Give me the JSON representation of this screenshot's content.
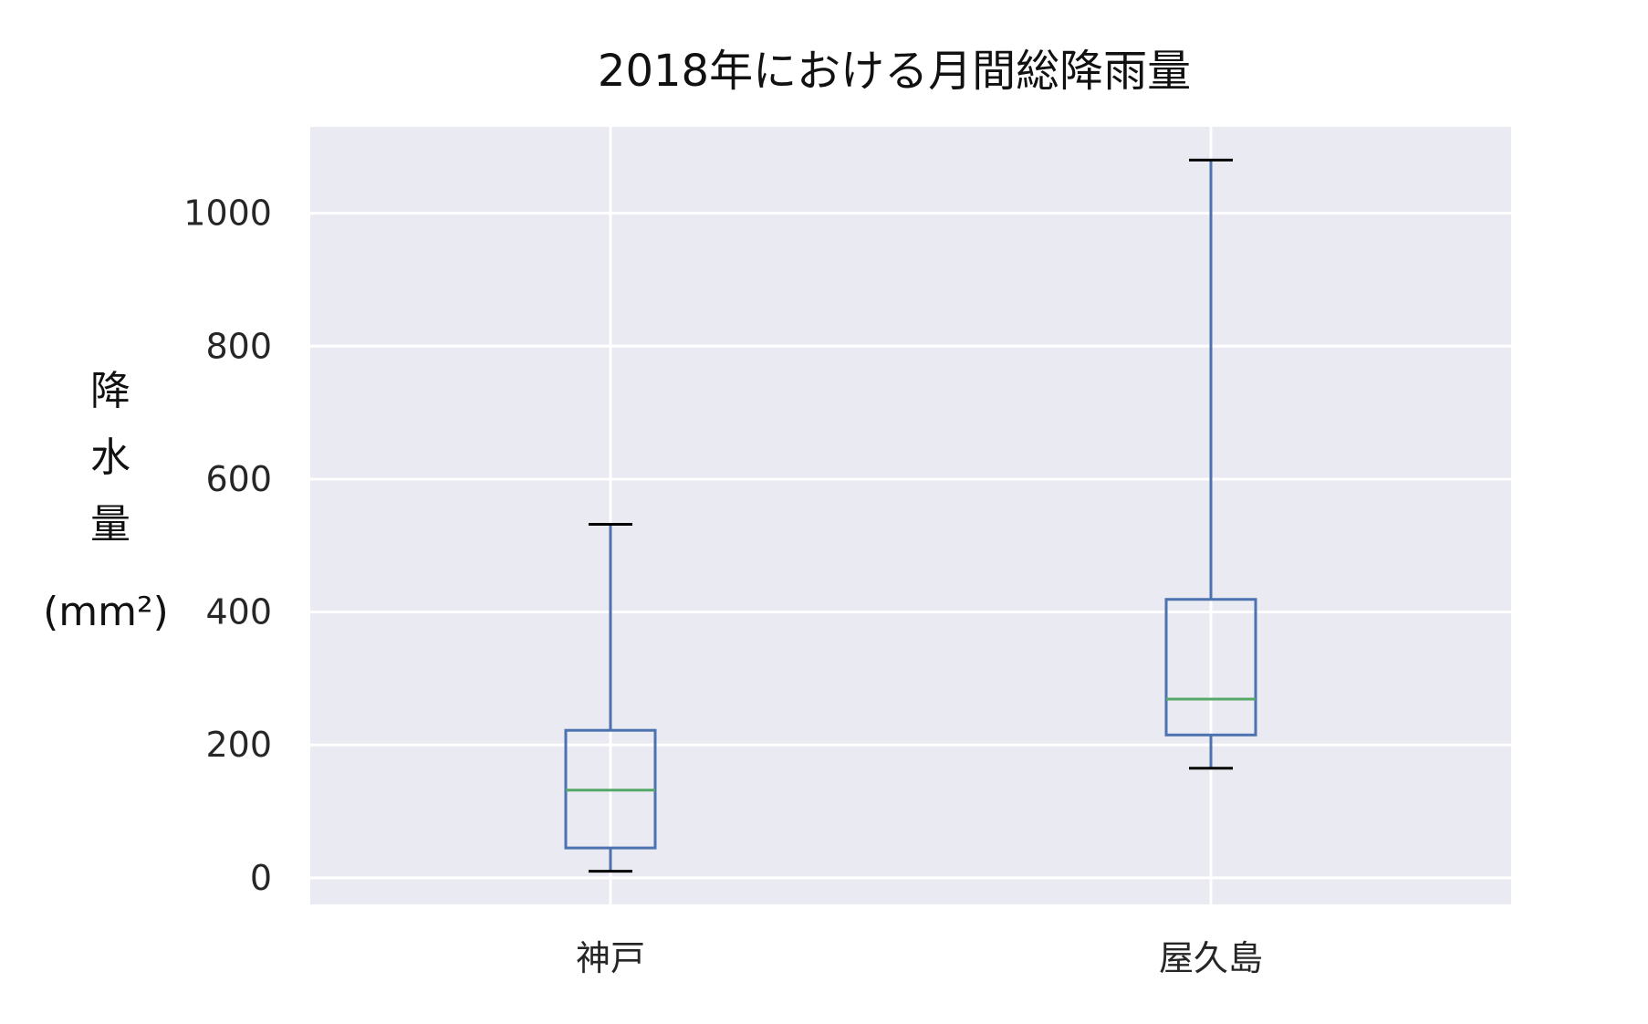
{
  "chart_data": {
    "type": "box",
    "title": "2018年における月間総降雨量",
    "xlabel": "",
    "ylabel": [
      "降",
      "水",
      "量",
      "(mm²)"
    ],
    "categories": [
      "神戸",
      "屋久島"
    ],
    "boxes": [
      {
        "category": "神戸",
        "whisker_low": 10,
        "q1": 45,
        "median": 132,
        "q3": 222,
        "whisker_high": 532
      },
      {
        "category": "屋久島",
        "whisker_low": 165,
        "q1": 215,
        "median": 269,
        "q3": 419,
        "whisker_high": 1080
      }
    ],
    "ylim": [
      -40,
      1130
    ],
    "yticks": [
      0,
      200,
      400,
      600,
      800,
      1000
    ],
    "ytick_labels": [
      "0",
      "200",
      "400",
      "600",
      "800",
      "1000"
    ],
    "grid": true,
    "legend": "none"
  },
  "colors": {
    "plot_background": "#eaeaf2",
    "grid": "#ffffff",
    "box": "#4c72b0",
    "median": "#55a868",
    "whisker_cap": "#000000"
  }
}
